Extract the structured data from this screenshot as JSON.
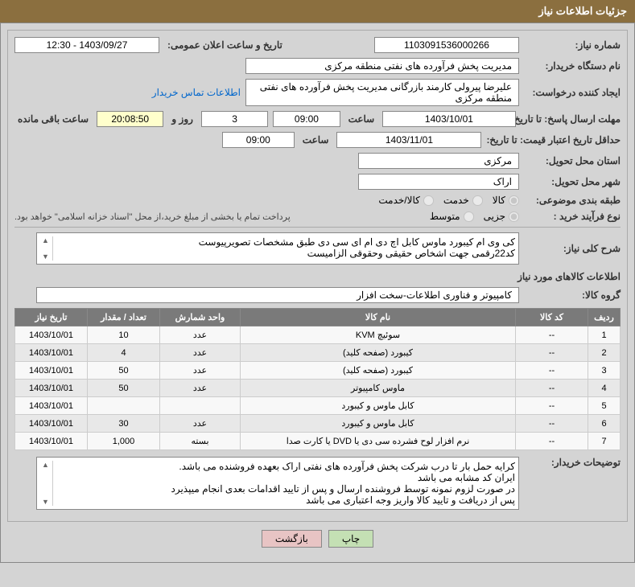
{
  "header": {
    "title": "جزئیات اطلاعات نیاز"
  },
  "fields": {
    "need_number_label": "شماره نیاز:",
    "need_number": "1103091536000266",
    "announce_label": "تاریخ و ساعت اعلان عمومی:",
    "announce_value": "1403/09/27 - 12:30",
    "buyer_org_label": "نام دستگاه خریدار:",
    "buyer_org": "مدیریت پخش فرآورده های نفتی منطقه مرکزی",
    "requester_label": "ایجاد کننده درخواست:",
    "requester": "علیرضا پیرولی کارمند بازرگانی مدیریت پخش فرآورده های نفتی منطقه مرکزی",
    "contact_link": "اطلاعات تماس خریدار",
    "response_deadline_label": "مهلت ارسال پاسخ: تا تاریخ:",
    "response_date": "1403/10/01",
    "time_label": "ساعت",
    "response_time": "09:00",
    "days_suffix": "روز و",
    "days_val": "3",
    "countdown": "20:08:50",
    "remaining_suffix": "ساعت باقی مانده",
    "price_validity_label": "حداقل تاریخ اعتبار قیمت: تا تاریخ:",
    "price_date": "1403/11/01",
    "price_time": "09:00",
    "delivery_province_label": "استان محل تحویل:",
    "delivery_province": "مرکزی",
    "delivery_city_label": "شهر محل تحویل:",
    "delivery_city": "اراک",
    "category_label": "طبقه بندی موضوعی:",
    "cat_goods": "کالا",
    "cat_service": "خدمت",
    "cat_both": "کالا/خدمت",
    "purchase_type_label": "نوع فرآیند خرید :",
    "pt_minor": "جزیی",
    "pt_medium": "متوسط",
    "payment_note": "پرداخت تمام یا بخشی از مبلغ خرید،از محل \"اسناد خزانه اسلامی\" خواهد بود.",
    "general_desc_label": "شرح کلی نیاز:",
    "general_desc": "کی وی ام کیبورد ماوس کابل اچ دی ام ای سی دی طبق مشخصات تصویرپیوست\nکد22رقمی  جهت اشخاص حقیقی وحقوقی الزامیست",
    "items_section": "اطلاعات کالاهای مورد نیاز",
    "goods_group_label": "گروه کالا:",
    "goods_group": "کامپیوتر و فناوری اطلاعات-سخت افزار",
    "buyer_notes_label": "توضیحات خریدار:",
    "buyer_notes": "کرایه حمل بار تا درب شرکت  پخش فرآورده های نفتی اراک بعهده فروشنده می باشد.\nایران کد مشابه می باشد\nدر صورت لزوم نمونه توسط فروشنده ارسال و پس از تایید اقدامات بعدی انجام میپذیرد\nپس از دریافت و تایید کالا واریز وجه اعتباری می باشد"
  },
  "table": {
    "headers": {
      "row": "ردیف",
      "code": "کد کالا",
      "name": "نام کالا",
      "unit": "واحد شمارش",
      "qty": "تعداد / مقدار",
      "date": "تاریخ نیاز"
    },
    "rows": [
      [
        "1",
        "--",
        "سوئیچ KVM",
        "عدد",
        "10",
        "1403/10/01"
      ],
      [
        "2",
        "--",
        "کیبورد (صفحه کلید)",
        "عدد",
        "4",
        "1403/10/01"
      ],
      [
        "3",
        "--",
        "کیبورد (صفحه کلید)",
        "عدد",
        "50",
        "1403/10/01"
      ],
      [
        "4",
        "--",
        "ماوس کامپیوتر",
        "عدد",
        "50",
        "1403/10/01"
      ],
      [
        "5",
        "--",
        "کابل ماوس و کیبورد",
        "",
        "",
        "1403/10/01"
      ],
      [
        "6",
        "--",
        "کابل ماوس و کیبورد",
        "عدد",
        "30",
        "1403/10/01"
      ],
      [
        "7",
        "--",
        "نرم افزار لوح فشرده سی دی یا DVD یا کارت صدا",
        "بسته",
        "1,000",
        "1403/10/01"
      ]
    ]
  },
  "buttons": {
    "print": "چاپ",
    "back": "بازگشت"
  },
  "colors": {
    "header_bg": "#8b6f3f",
    "panel_bg": "#d4d4d4",
    "th_bg": "#7a7a7a"
  }
}
